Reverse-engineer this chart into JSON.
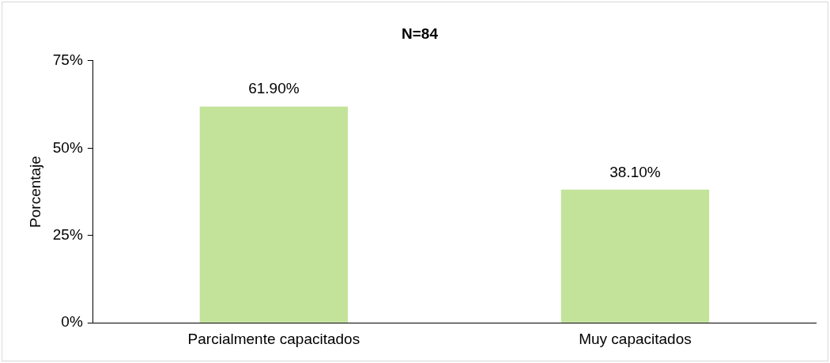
{
  "chart_data": {
    "type": "bar",
    "title": "N=84",
    "ylabel": "Porcentaje",
    "categories": [
      "Parcialmente capacitados",
      "Muy capacitados"
    ],
    "values": [
      61.9,
      38.1
    ],
    "color": "#c3e39a",
    "value_labels": [
      "61.90%",
      "38.10%"
    ],
    "ylim": [
      0,
      75
    ],
    "yticks": [
      {
        "value": 0,
        "label": "0%"
      },
      {
        "value": 25,
        "label": "25%"
      },
      {
        "value": 50,
        "label": "50%"
      },
      {
        "value": 75,
        "label": "75%"
      }
    ],
    "grid": false,
    "legend": false
  }
}
